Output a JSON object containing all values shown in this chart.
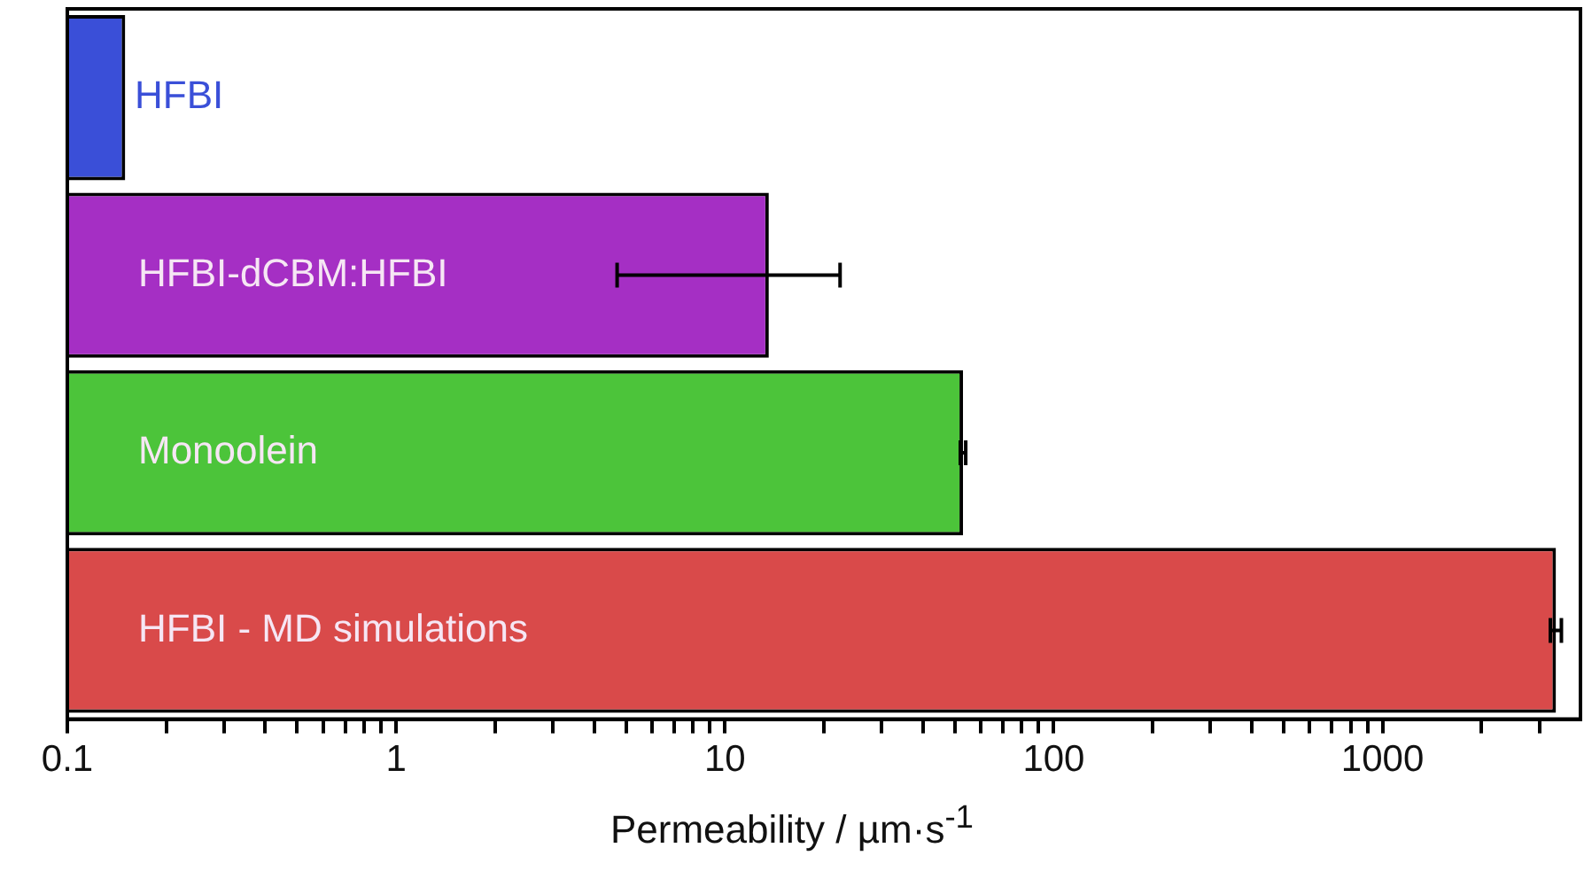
{
  "chart_data": {
    "type": "bar",
    "orientation": "horizontal",
    "xlabel": "Permeability / µm·s$^{-1}$",
    "categories": [
      "HFBI",
      "HFBI-dCBM:HFBI",
      "Monoolein",
      "HFBI - MD simulations"
    ],
    "values": [
      0.15,
      13.6,
      53,
      3370
    ],
    "errors": [
      null,
      [
        4.7,
        22.4
      ],
      [
        52,
        54
      ],
      [
        3240,
        3500
      ]
    ],
    "colors": [
      "#3a4fd8",
      "#a52fc4",
      "#4cc43a",
      "#d94a4a"
    ],
    "log": "x",
    "xlim": [
      0.1,
      4000
    ],
    "xticks": [
      0.1,
      {
        "value": 0.2,
        "label": null
      },
      {
        "value": 0.3,
        "label": null
      },
      {
        "value": 0.4,
        "label": null
      },
      {
        "value": 0.5,
        "label": null
      },
      {
        "value": 0.6,
        "label": null
      },
      {
        "value": 0.7,
        "label": null
      },
      {
        "value": 0.8,
        "label": null
      },
      {
        "value": 0.9,
        "label": null
      },
      1,
      {
        "value": 2,
        "label": null
      },
      {
        "value": 3,
        "label": null
      },
      {
        "value": 4,
        "label": null
      },
      {
        "value": 5,
        "label": null
      },
      {
        "value": 6,
        "label": null
      },
      {
        "value": 7,
        "label": null
      },
      {
        "value": 8,
        "label": null
      },
      {
        "value": 9,
        "label": null
      },
      10,
      {
        "value": 20,
        "label": null
      },
      {
        "value": 30,
        "label": null
      },
      {
        "value": 40,
        "label": null
      },
      {
        "value": 50,
        "label": null
      },
      {
        "value": 60,
        "label": null
      },
      {
        "value": 70,
        "label": null
      },
      {
        "value": 80,
        "label": null
      },
      {
        "value": 90,
        "label": null
      },
      100,
      {
        "value": 200,
        "label": null
      },
      {
        "value": 300,
        "label": null
      },
      {
        "value": 400,
        "label": null
      },
      {
        "value": 500,
        "label": null
      },
      {
        "value": 600,
        "label": null
      },
      {
        "value": 700,
        "label": null
      },
      {
        "value": 800,
        "label": null
      },
      {
        "value": 900,
        "label": null
      },
      1000,
      {
        "value": 2000,
        "label": null
      },
      {
        "value": 3000,
        "label": null
      }
    ],
    "tick_labels": "x",
    "grid": false,
    "legend": false
  }
}
